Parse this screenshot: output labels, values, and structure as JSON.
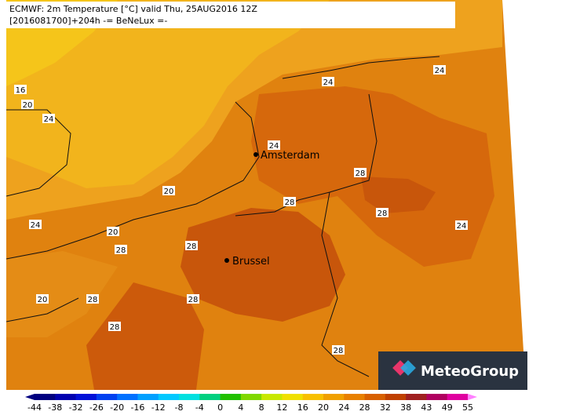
{
  "header": {
    "line1": "ECMWF: 2m Temperature [°C] valid Thu, 25AUG2016 12Z",
    "line2": "[2016081700]+204h  -= BeNeLux =-"
  },
  "map": {
    "cities": [
      "Amsterdam",
      "Brussel"
    ],
    "contour_labels": [
      16,
      20,
      24,
      24,
      24,
      24,
      28,
      20,
      28,
      28,
      24,
      20,
      28,
      28,
      24,
      20,
      28,
      28,
      28,
      28
    ]
  },
  "colorbar": {
    "ticks": [
      -44,
      -38,
      -32,
      -26,
      -20,
      -16,
      -12,
      -8,
      -4,
      0,
      4,
      8,
      12,
      16,
      20,
      24,
      28,
      32,
      38,
      43,
      49,
      55
    ],
    "colors": [
      "#000080",
      "#0000b0",
      "#0010d8",
      "#0040f0",
      "#0070ff",
      "#00a0ff",
      "#00c8ff",
      "#00e0e0",
      "#00d080",
      "#20c000",
      "#80d800",
      "#c8e800",
      "#f0e000",
      "#f8c000",
      "#f0a000",
      "#e88000",
      "#d86000",
      "#c04000",
      "#a02020",
      "#b00060",
      "#e000a0"
    ]
  },
  "logo": "MeteoGroup"
}
